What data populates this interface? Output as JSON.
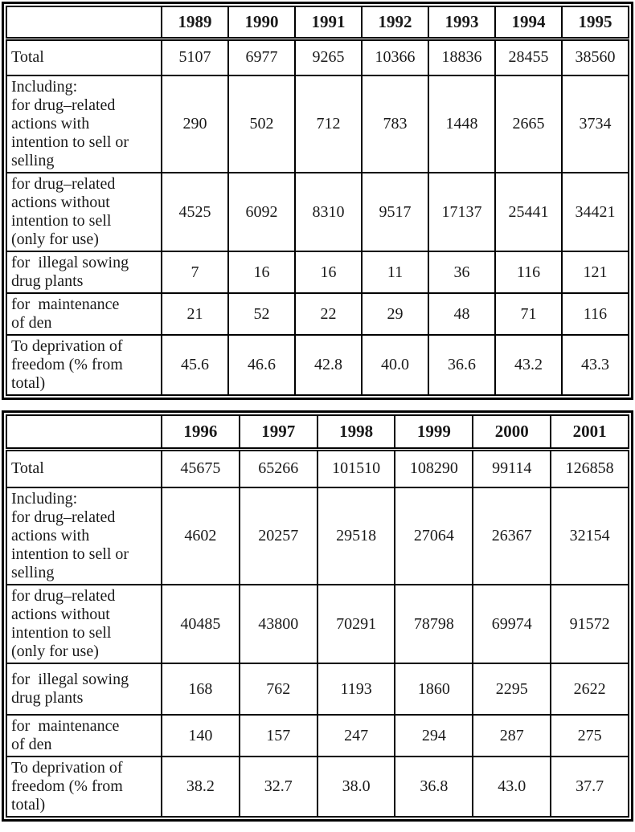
{
  "page": {
    "background": "#ffffff",
    "text_color": "#1a1a1a",
    "border_color": "#000000"
  },
  "tables": [
    {
      "name": "sentenced-table-1989-1995",
      "header": [
        "",
        "1989",
        "1990",
        "1991",
        "1992",
        "1993",
        "1994",
        "1995"
      ],
      "rows": [
        {
          "label": "Total",
          "values": [
            "5107",
            "6977",
            "9265",
            "10366",
            "18836",
            "28455",
            "38560"
          ]
        },
        {
          "label": "Including:\nfor drug–related\nactions with\nintention to sell or\nselling",
          "values": [
            "290",
            "502",
            "712",
            "783",
            "1448",
            "2665",
            "3734"
          ]
        },
        {
          "label": "for drug–related\nactions without\nintention to sell\n(only for use)",
          "values": [
            "4525",
            "6092",
            "8310",
            "9517",
            "17137",
            "25441",
            "34421"
          ]
        },
        {
          "label": "for  illegal sowing\ndrug plants",
          "values": [
            "7",
            "16",
            "16",
            "11",
            "36",
            "116",
            "121"
          ]
        },
        {
          "label": "for  maintenance\nof den",
          "values": [
            "21",
            "52",
            "22",
            "29",
            "48",
            "71",
            "116"
          ]
        },
        {
          "label": "To deprivation of\nfreedom (% from\ntotal)",
          "values": [
            "45.6",
            "46.6",
            "42.8",
            "40.0",
            "36.6",
            "43.2",
            "43.3"
          ]
        }
      ]
    },
    {
      "name": "sentenced-table-1996-2001",
      "header": [
        "",
        "1996",
        "1997",
        "1998",
        "1999",
        "2000",
        "2001"
      ],
      "rows": [
        {
          "label": "Total",
          "values": [
            "45675",
            "65266",
            "101510",
            "108290",
            "99114",
            "126858"
          ]
        },
        {
          "label": "Including:\nfor drug–related\nactions with\nintention to sell or\nselling",
          "values": [
            "4602",
            "20257",
            "29518",
            "27064",
            "26367",
            "32154"
          ]
        },
        {
          "label": "for drug–related\nactions without\nintention to sell\n(only for use)",
          "values": [
            "40485",
            "43800",
            "70291",
            "78798",
            "69974",
            "91572"
          ]
        },
        {
          "label": "for  illegal sowing\ndrug plants",
          "values": [
            "168",
            "762",
            "1193",
            "1860",
            "2295",
            "2622"
          ]
        },
        {
          "label": "for  maintenance\nof den",
          "values": [
            "140",
            "157",
            "247",
            "294",
            "287",
            "275"
          ]
        },
        {
          "label": "To deprivation of\nfreedom (% from\ntotal)",
          "values": [
            "38.2",
            "32.7",
            "38.0",
            "36.8",
            "43.0",
            "37.7"
          ]
        }
      ]
    }
  ]
}
